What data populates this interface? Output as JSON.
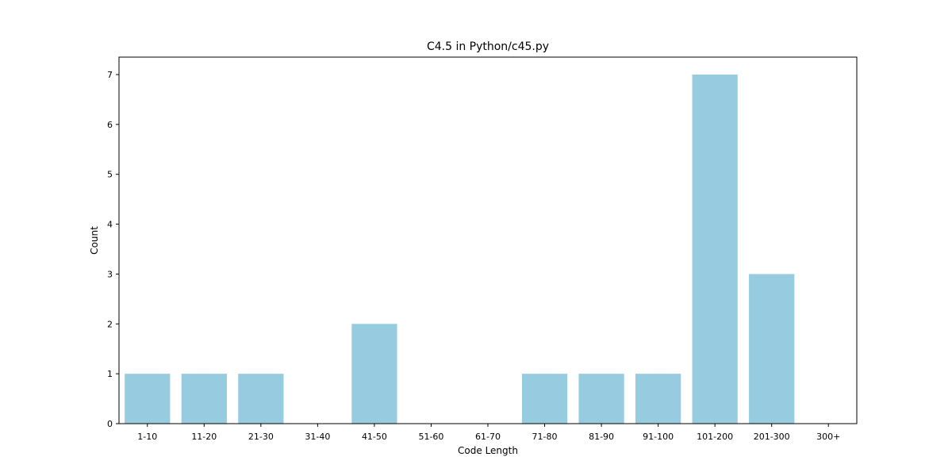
{
  "chart_data": {
    "type": "bar",
    "title": "C4.5 in Python/c45.py",
    "xlabel": "Code Length",
    "ylabel": "Count",
    "categories": [
      "1-10",
      "11-20",
      "21-30",
      "31-40",
      "41-50",
      "51-60",
      "61-70",
      "71-80",
      "81-90",
      "91-100",
      "101-200",
      "201-300",
      "300+"
    ],
    "values": [
      1,
      1,
      1,
      0,
      2,
      0,
      0,
      1,
      1,
      1,
      7,
      3,
      0
    ],
    "ylim": [
      0,
      7.35
    ],
    "yticks": [
      0,
      1,
      2,
      3,
      4,
      5,
      6,
      7
    ],
    "grid": false,
    "bar_color": "#96cbe0"
  }
}
